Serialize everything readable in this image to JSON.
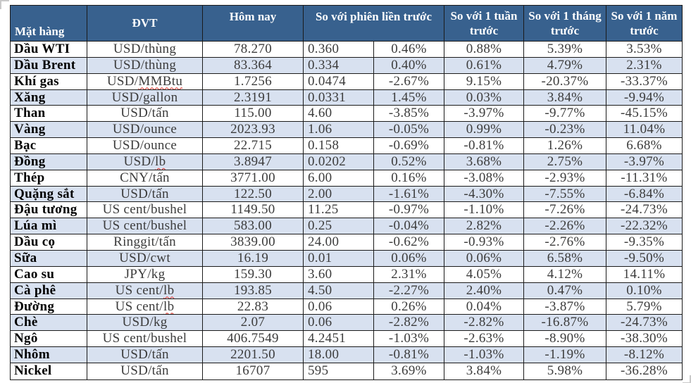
{
  "table": {
    "headers": {
      "col_item": "Mặt hàng",
      "col_unit": "ĐVT",
      "col_today": "Hôm nay",
      "col_prev_session": "So với phiên liền trước",
      "col_week": "So với 1 tuần trước",
      "col_month": "So với 1 tháng trước",
      "col_year": "So với 1 năm trước"
    },
    "rows": [
      {
        "name": "Dầu WTI",
        "unit_plain": "USD/thùng",
        "unit_misspelled": "",
        "today": "78.270",
        "change": "0.360",
        "change_pct": "0.46%",
        "week_pct": "0.88%",
        "month_pct": "5.39%",
        "year_pct": "3.53%"
      },
      {
        "name": "Dầu Brent",
        "unit_plain": "USD/thùng",
        "unit_misspelled": "",
        "today": "83.364",
        "change": "0.334",
        "change_pct": "0.40%",
        "week_pct": "0.61%",
        "month_pct": "4.79%",
        "year_pct": "2.31%"
      },
      {
        "name": "Khí gas",
        "unit_plain": "USD/",
        "unit_misspelled": "MMBtu",
        "today": "1.7256",
        "change": "0.0474",
        "change_pct": "-2.67%",
        "week_pct": "9.15%",
        "month_pct": "-20.37%",
        "year_pct": "-33.37%"
      },
      {
        "name": "Xăng",
        "unit_plain": "USD/gallon",
        "unit_misspelled": "",
        "today": "2.3191",
        "change": "0.0331",
        "change_pct": "1.45%",
        "week_pct": "0.03%",
        "month_pct": "3.84%",
        "year_pct": "-9.94%"
      },
      {
        "name": "Than",
        "unit_plain": "USD/tấn",
        "unit_misspelled": "",
        "today": "115.00",
        "change": "4.60",
        "change_pct": "-3.85%",
        "week_pct": "-3.97%",
        "month_pct": "-9.77%",
        "year_pct": "-45.15%"
      },
      {
        "name": "Vàng",
        "unit_plain": "USD/ounce",
        "unit_misspelled": "",
        "today": "2023.93",
        "change": "1.06",
        "change_pct": "-0.05%",
        "week_pct": "0.99%",
        "month_pct": "-0.23%",
        "year_pct": "11.04%"
      },
      {
        "name": "Bạc",
        "unit_plain": "USD/ounce",
        "unit_misspelled": "",
        "today": "22.715",
        "change": "0.158",
        "change_pct": "-0.69%",
        "week_pct": "-0.81%",
        "month_pct": "1.26%",
        "year_pct": "6.68%"
      },
      {
        "name": "Đồng",
        "unit_plain": "USD/",
        "unit_misspelled": "lb",
        "today": "3.8947",
        "change": "0.0202",
        "change_pct": "0.52%",
        "week_pct": "3.68%",
        "month_pct": "2.75%",
        "year_pct": "-3.97%"
      },
      {
        "name": "Thép",
        "unit_plain": "CNY/tấn",
        "unit_misspelled": "",
        "today": "3771.00",
        "change": "6.00",
        "change_pct": "0.16%",
        "week_pct": "-3.08%",
        "month_pct": "-2.93%",
        "year_pct": "-11.31%"
      },
      {
        "name": "Quặng sắt",
        "unit_plain": "USD/tấn",
        "unit_misspelled": "",
        "today": "122.50",
        "change": "2.00",
        "change_pct": "-1.61%",
        "week_pct": "-4.30%",
        "month_pct": "-7.55%",
        "year_pct": "-6.84%"
      },
      {
        "name": "Đậu tương",
        "unit_plain": "US cent/bushel",
        "unit_misspelled": "",
        "today": "1149.50",
        "change": "11.25",
        "change_pct": "-0.97%",
        "week_pct": "-1.10%",
        "month_pct": "-7.26%",
        "year_pct": "-24.73%"
      },
      {
        "name": "Lúa mì",
        "unit_plain": "US cent/bushel",
        "unit_misspelled": "",
        "today": "583.00",
        "change": "0.25",
        "change_pct": "-0.04%",
        "week_pct": "2.82%",
        "month_pct": "-2.26%",
        "year_pct": "-22.32%"
      },
      {
        "name": "Dầu cọ",
        "unit_plain": "Ringgit/tấn",
        "unit_misspelled": "",
        "today": "3839.00",
        "change": "24.00",
        "change_pct": "-0.62%",
        "week_pct": "-0.93%",
        "month_pct": "-2.76%",
        "year_pct": "-9.35%"
      },
      {
        "name": "Sữa",
        "unit_plain": "USD/cwt",
        "unit_misspelled": "",
        "today": "16.19",
        "change": "0.01",
        "change_pct": "0.06%",
        "week_pct": "0.06%",
        "month_pct": "6.58%",
        "year_pct": "-9.50%"
      },
      {
        "name": "Cao su",
        "unit_plain": "JPY/kg",
        "unit_misspelled": "",
        "today": "159.30",
        "change": "3.60",
        "change_pct": "2.31%",
        "week_pct": "4.05%",
        "month_pct": "4.12%",
        "year_pct": "14.11%"
      },
      {
        "name": "Cà phê",
        "unit_plain": "US cent/",
        "unit_misspelled": "lb",
        "today": "193.85",
        "change": "4.50",
        "change_pct": "-2.27%",
        "week_pct": "2.40%",
        "month_pct": "0.47%",
        "year_pct": "0.10%"
      },
      {
        "name": "Đường",
        "unit_plain": "US cent/",
        "unit_misspelled": "lb",
        "today": "22.83",
        "change": "0.06",
        "change_pct": "0.26%",
        "week_pct": "0.04%",
        "month_pct": "-3.87%",
        "year_pct": "5.79%"
      },
      {
        "name": "Chè",
        "unit_plain": "USD/kg",
        "unit_misspelled": "",
        "today": "2.07",
        "change": "0.06",
        "change_pct": "-2.82%",
        "week_pct": "-2.82%",
        "month_pct": "-16.87%",
        "year_pct": "-24.73%"
      },
      {
        "name": "Ngô",
        "unit_plain": "US cent/bushel",
        "unit_misspelled": "",
        "today": "406.7549",
        "change": "4.2451",
        "change_pct": "-1.03%",
        "week_pct": "-2.63%",
        "month_pct": "-8.90%",
        "year_pct": "-38.30%"
      },
      {
        "name": "Nhôm",
        "unit_plain": "USD/tấn",
        "unit_misspelled": "",
        "today": "2201.50",
        "change": "18.00",
        "change_pct": "-0.81%",
        "week_pct": "-1.03%",
        "month_pct": "-1.19%",
        "year_pct": "-8.12%"
      },
      {
        "name": "Nickel",
        "unit_plain": "USD/tấn",
        "unit_misspelled": "",
        "today": "16707",
        "change": "595",
        "change_pct": "3.69%",
        "week_pct": "3.84%",
        "month_pct": "5.98%",
        "year_pct": "-36.28%"
      }
    ]
  },
  "colors": {
    "header_bg": "#38618E",
    "header_text": "#FFFFFF",
    "stripe_bg": "#D8E1F0",
    "border": "#1B1B1B",
    "body_text": "#3C3C3C",
    "spellcheck_squiggle": "#E03229"
  }
}
